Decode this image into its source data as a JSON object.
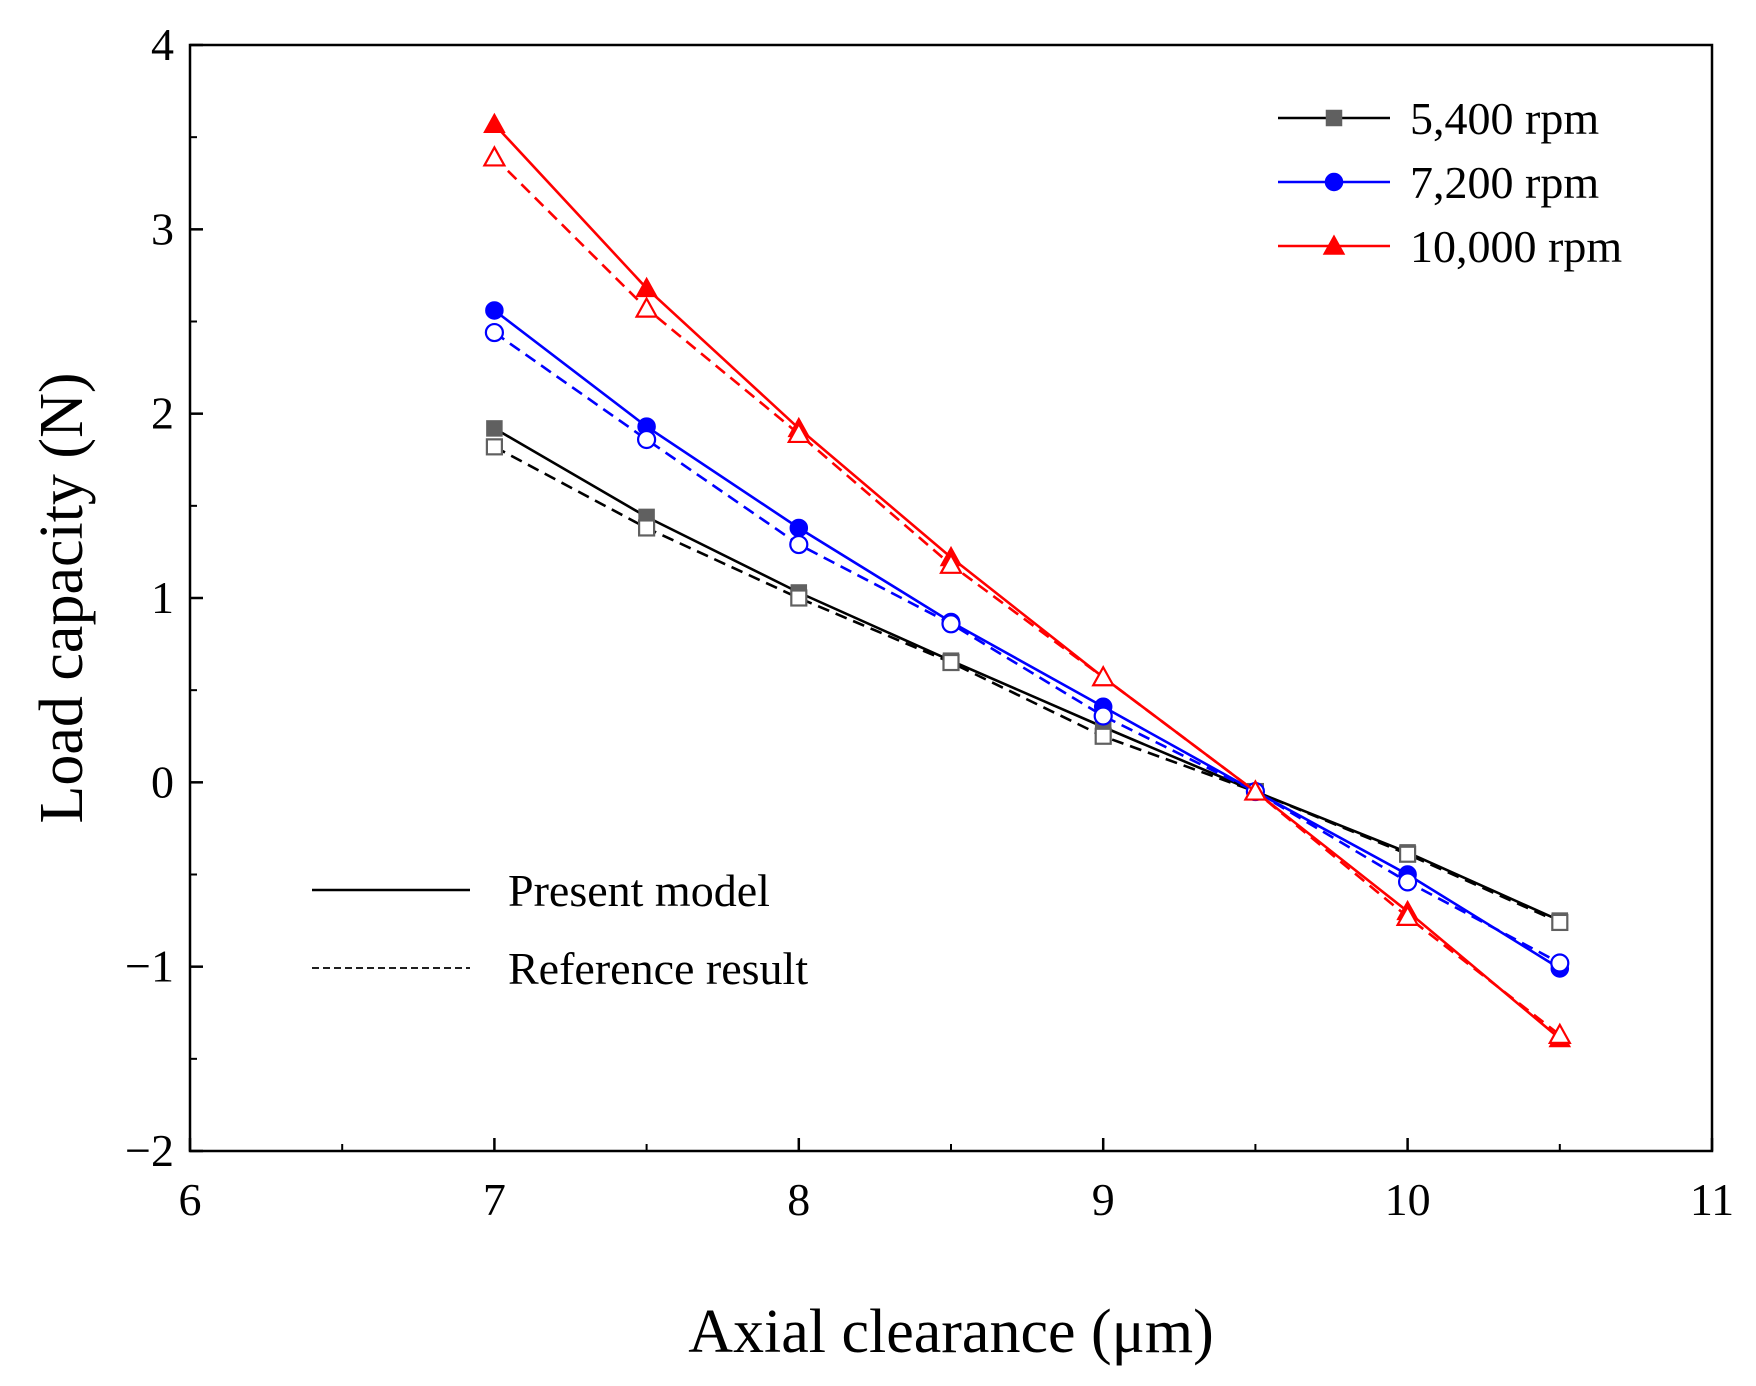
{
  "chart_data": {
    "type": "line",
    "xlabel": "Axial clearance (μm)",
    "ylabel": "Load capacity (N)",
    "xlim": [
      6,
      11
    ],
    "ylim": [
      -2,
      4
    ],
    "x_ticks": [
      6,
      7,
      8,
      9,
      10,
      11
    ],
    "x_tick_labels": [
      "6",
      "7",
      "8",
      "9",
      "10",
      "11"
    ],
    "y_ticks": [
      -2,
      -1,
      0,
      1,
      2,
      3,
      4
    ],
    "y_tick_labels": [
      "−2",
      "−1",
      "0",
      "1",
      "2",
      "3",
      "4"
    ],
    "grid": false,
    "x": [
      7,
      7.5,
      8,
      8.5,
      9,
      9.5,
      10,
      10.5
    ],
    "series": [
      {
        "name": "5,400 rpm",
        "model": "Present model",
        "color": "#000000",
        "marker_color": "#606060",
        "marker": "square",
        "filled": true,
        "dashed": false,
        "values": [
          1.92,
          1.44,
          1.03,
          0.66,
          0.3,
          -0.05,
          -0.38,
          -0.75
        ]
      },
      {
        "name": "5,400 rpm",
        "model": "Reference result",
        "color": "#000000",
        "marker_color": "#606060",
        "marker": "square",
        "filled": false,
        "dashed": true,
        "values": [
          1.82,
          1.38,
          1.0,
          0.65,
          0.25,
          -0.05,
          -0.39,
          -0.76
        ]
      },
      {
        "name": "7,200 rpm",
        "model": "Present model",
        "color": "#0000ff",
        "marker_color": "#0000ff",
        "marker": "circle",
        "filled": true,
        "dashed": false,
        "values": [
          2.56,
          1.93,
          1.38,
          0.87,
          0.41,
          -0.05,
          -0.5,
          -1.01
        ]
      },
      {
        "name": "7,200 rpm",
        "model": "Reference result",
        "color": "#0000ff",
        "marker_color": "#0000ff",
        "marker": "circle",
        "filled": false,
        "dashed": true,
        "values": [
          2.44,
          1.86,
          1.29,
          0.86,
          0.36,
          -0.05,
          -0.54,
          -0.98
        ]
      },
      {
        "name": "10,000 rpm",
        "model": "Present model",
        "color": "#ff0000",
        "marker_color": "#ff0000",
        "marker": "triangle",
        "filled": true,
        "dashed": false,
        "values": [
          3.57,
          2.68,
          1.92,
          1.22,
          0.57,
          -0.05,
          -0.7,
          -1.39
        ]
      },
      {
        "name": "10,000 rpm",
        "model": "Reference result",
        "color": "#ff0000",
        "marker_color": "#ff0000",
        "marker": "triangle",
        "filled": false,
        "dashed": true,
        "values": [
          3.39,
          2.57,
          1.89,
          1.18,
          0.57,
          -0.05,
          -0.73,
          -1.37
        ]
      }
    ],
    "legend_speed": {
      "placement": "top-right",
      "entries": [
        {
          "label": "5,400 rpm",
          "color": "#000000",
          "marker_color": "#606060",
          "marker": "square"
        },
        {
          "label": "7,200 rpm",
          "color": "#0000ff",
          "marker_color": "#0000ff",
          "marker": "circle"
        },
        {
          "label": "10,000 rpm",
          "color": "#ff0000",
          "marker_color": "#ff0000",
          "marker": "triangle"
        }
      ]
    },
    "legend_style": {
      "placement": "bottom-left",
      "entries": [
        {
          "label": "Present model",
          "dashed": false
        },
        {
          "label": "Reference result",
          "dashed": true
        }
      ]
    }
  }
}
